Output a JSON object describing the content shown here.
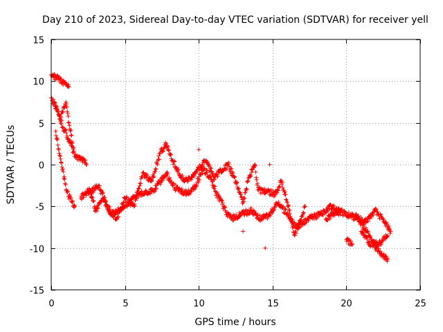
{
  "chart_data": {
    "type": "scatter",
    "title": "Day 210 of 2023, Sidereal Day-to-day VTEC variation (SDTVAR) for receiver yell",
    "xlabel": "GPS time / hours",
    "ylabel": "SDTVAR / TECUs",
    "xlim": [
      0,
      25
    ],
    "ylim": [
      -15,
      15
    ],
    "x_ticks": [
      0,
      5,
      10,
      15,
      20,
      25
    ],
    "y_ticks": [
      -15,
      -10,
      -5,
      0,
      5,
      10,
      15
    ],
    "x_tick_labels": [
      "0",
      "5",
      "10",
      "15",
      "20",
      "25"
    ],
    "y_tick_labels": [
      "-15",
      "-10",
      "-5",
      "0",
      "5",
      "10",
      "15"
    ],
    "grid": true,
    "marker": "+",
    "series": [
      {
        "name": "SDTVAR",
        "color": "#ff0000",
        "keypoints": [
          [
            0.0,
            10.8
          ],
          [
            0.5,
            10.3
          ],
          [
            1.2,
            9.3
          ],
          [
            0.0,
            8.0
          ],
          [
            0.4,
            6.5
          ],
          [
            0.8,
            4.5
          ],
          [
            1.2,
            3.0
          ],
          [
            1.6,
            1.0
          ],
          [
            2.2,
            0.5
          ],
          [
            2.4,
            0.0
          ],
          [
            0.3,
            4.0
          ],
          [
            0.6,
            1.0
          ],
          [
            1.0,
            -3.0
          ],
          [
            1.4,
            -4.5
          ],
          [
            1.6,
            -5.0
          ],
          [
            0.2,
            7.5
          ],
          [
            0.6,
            5.5
          ],
          [
            1.0,
            7.5
          ],
          [
            1.2,
            5.0
          ],
          [
            1.5,
            2.0
          ],
          [
            2.0,
            -4.0
          ],
          [
            2.6,
            -3.0
          ],
          [
            3.0,
            -5.5
          ],
          [
            3.5,
            -4.0
          ],
          [
            4.0,
            -6.0
          ],
          [
            4.5,
            -5.5
          ],
          [
            5.0,
            -5.0
          ],
          [
            5.5,
            -4.0
          ],
          [
            6.0,
            -3.5
          ],
          [
            7.0,
            -3.0
          ],
          [
            7.8,
            -1.0
          ],
          [
            8.2,
            -2.5
          ],
          [
            8.6,
            -3.0
          ],
          [
            9.2,
            -3.5
          ],
          [
            9.8,
            -2.5
          ],
          [
            10.3,
            -0.5
          ],
          [
            10.8,
            -1.5
          ],
          [
            11.2,
            -3.5
          ],
          [
            11.8,
            -5.5
          ],
          [
            12.2,
            -6.5
          ],
          [
            12.8,
            -6.0
          ],
          [
            13.5,
            -5.5
          ],
          [
            14.2,
            -6.5
          ],
          [
            14.8,
            -6.0
          ],
          [
            15.4,
            -4.5
          ],
          [
            16.0,
            -6.0
          ],
          [
            16.6,
            -7.5
          ],
          [
            17.4,
            -6.5
          ],
          [
            18.2,
            -6.0
          ],
          [
            19.0,
            -5.0
          ],
          [
            19.6,
            -6.0
          ],
          [
            2.5,
            -3.5
          ],
          [
            3.2,
            -2.5
          ],
          [
            3.8,
            -5.0
          ],
          [
            4.4,
            -6.5
          ],
          [
            5.0,
            -4.0
          ],
          [
            5.6,
            -5.0
          ],
          [
            6.2,
            -1.0
          ],
          [
            6.8,
            -2.0
          ],
          [
            7.4,
            1.5
          ],
          [
            7.8,
            2.5
          ],
          [
            8.2,
            0.5
          ],
          [
            9.0,
            -2.0
          ],
          [
            9.5,
            -1.5
          ],
          [
            10.0,
            -0.5
          ],
          [
            10.5,
            0.5
          ],
          [
            11.0,
            -1.5
          ],
          [
            12.0,
            0.0
          ],
          [
            12.5,
            -2.0
          ],
          [
            13.0,
            -4.5
          ],
          [
            13.4,
            -1.5
          ],
          [
            13.8,
            0.0
          ],
          [
            14.0,
            -3.0
          ],
          [
            15.2,
            -3.5
          ],
          [
            15.6,
            -2.0
          ],
          [
            16.0,
            -4.5
          ],
          [
            16.5,
            -8.5
          ],
          [
            17.2,
            -5.0
          ],
          [
            18.6,
            -6.5
          ],
          [
            19.4,
            -5.5
          ],
          [
            20.1,
            -6.0
          ],
          [
            20.8,
            -6.5
          ],
          [
            21.4,
            -8.0
          ],
          [
            22.0,
            -10.0
          ],
          [
            22.5,
            -11.0
          ],
          [
            22.8,
            -11.3
          ],
          [
            20.6,
            -6.0
          ],
          [
            21.2,
            -7.0
          ],
          [
            22.0,
            -5.5
          ],
          [
            22.6,
            -7.0
          ],
          [
            23.0,
            -8.0
          ],
          [
            21.0,
            -8.0
          ],
          [
            21.6,
            -9.5
          ],
          [
            22.2,
            -9.5
          ],
          [
            22.8,
            -8.5
          ],
          [
            20.0,
            -9.0
          ],
          [
            20.4,
            -9.5
          ],
          [
            10.0,
            1.8
          ],
          [
            14.5,
            -10.0
          ],
          [
            14.8,
            0.0
          ],
          [
            13.0,
            -8.0
          ]
        ]
      }
    ]
  }
}
